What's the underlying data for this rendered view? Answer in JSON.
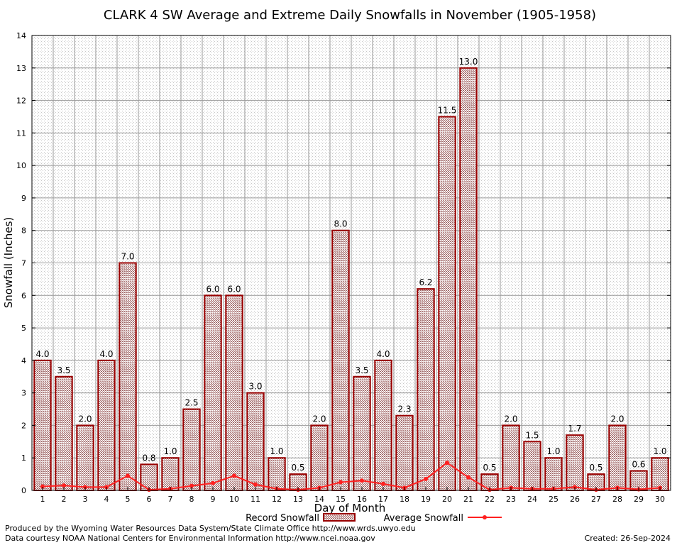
{
  "chart_data": {
    "type": "bar",
    "title": "CLARK 4 SW Average and Extreme Daily Snowfalls in November (1905-1958)",
    "xlabel": "Day of Month",
    "ylabel": "Snowfall (Inches)",
    "ylim": [
      0,
      14
    ],
    "yticks": [
      "0",
      "1",
      "2",
      "3",
      "4",
      "5",
      "6",
      "7",
      "8",
      "9",
      "10",
      "11",
      "12",
      "13",
      "14"
    ],
    "grid": true,
    "legend_position": "bottom-center",
    "categories": [
      "1",
      "2",
      "3",
      "4",
      "5",
      "6",
      "7",
      "8",
      "9",
      "10",
      "11",
      "12",
      "13",
      "14",
      "15",
      "16",
      "17",
      "18",
      "19",
      "20",
      "21",
      "22",
      "23",
      "24",
      "25",
      "26",
      "27",
      "28",
      "29",
      "30"
    ],
    "series": [
      {
        "name": "Record Snowfall",
        "kind": "bar",
        "color": "#990000",
        "values": [
          4.0,
          3.5,
          2.0,
          4.0,
          7.0,
          0.8,
          1.0,
          2.5,
          6.0,
          6.0,
          3.0,
          1.0,
          0.5,
          2.0,
          8.0,
          3.5,
          4.0,
          2.3,
          6.2,
          11.5,
          13.0,
          0.5,
          2.0,
          1.5,
          1.0,
          1.7,
          0.5,
          2.0,
          0.6,
          1.0
        ],
        "labels": [
          "4.0",
          "3.5",
          "2.0",
          "4.0",
          "7.0",
          "0.8",
          "1.0",
          "2.5",
          "6.0",
          "6.0",
          "3.0",
          "1.0",
          "0.5",
          "2.0",
          "8.0",
          "3.5",
          "4.0",
          "2.3",
          "6.2",
          "11.5",
          "13.0",
          "0.5",
          "2.0",
          "1.5",
          "1.0",
          "1.7",
          "0.5",
          "2.0",
          "0.6",
          "1.0"
        ]
      },
      {
        "name": "Average Snowfall",
        "kind": "line",
        "color": "#ff2020",
        "values": [
          0.12,
          0.15,
          0.1,
          0.1,
          0.45,
          0.02,
          0.05,
          0.14,
          0.22,
          0.45,
          0.18,
          0.05,
          0.02,
          0.08,
          0.25,
          0.3,
          0.2,
          0.08,
          0.35,
          0.85,
          0.4,
          0.02,
          0.08,
          0.05,
          0.05,
          0.1,
          0.02,
          0.08,
          0.03,
          0.08
        ]
      }
    ]
  },
  "footer": {
    "credit_line1": "Produced by the Wyoming Water Resources Data System/State Climate Office http://www.wrds.uwyo.edu",
    "credit_line2": "Data courtesy NOAA National Centers for Environmental Information http://www.ncei.noaa.gov",
    "created": "Created:  26-Sep-2024"
  }
}
